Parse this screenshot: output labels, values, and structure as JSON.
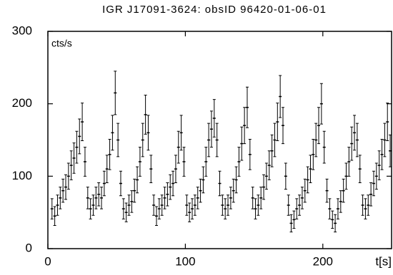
{
  "chart_data": {
    "type": "errorbar",
    "title": "IGR J17091-3624: obsID 96420-01-06-01",
    "ylabel": "cts/s",
    "xlabel": "t[s]",
    "color": "#000000",
    "xlim": [
      0,
      250
    ],
    "xticks": [
      0,
      100,
      200
    ],
    "ylim": [
      0,
      300
    ],
    "yticks": [
      0,
      100,
      200,
      300
    ],
    "x": [
      3,
      5,
      7,
      9,
      11,
      13,
      15,
      17,
      19,
      21,
      23,
      25,
      27,
      29,
      31,
      33,
      35,
      37,
      39,
      41,
      43,
      45,
      47,
      49,
      51,
      53,
      55,
      57,
      59,
      61,
      63,
      65,
      67,
      69,
      71,
      73,
      75,
      77,
      79,
      81,
      83,
      85,
      87,
      89,
      91,
      93,
      95,
      97,
      99,
      101,
      103,
      105,
      107,
      109,
      111,
      113,
      115,
      117,
      119,
      121,
      123,
      125,
      127,
      129,
      131,
      133,
      135,
      137,
      139,
      141,
      143,
      145,
      147,
      149,
      151,
      153,
      155,
      157,
      159,
      161,
      163,
      165,
      167,
      169,
      171,
      173,
      175,
      177,
      179,
      181,
      183,
      185,
      187,
      189,
      191,
      193,
      195,
      197,
      199,
      201,
      203,
      205,
      207,
      209,
      211,
      213,
      215,
      217,
      219,
      221,
      223,
      225,
      227,
      229,
      231,
      233,
      235,
      237,
      239,
      241,
      243,
      245,
      247,
      249
    ],
    "values": [
      55,
      45,
      60,
      70,
      80,
      85,
      100,
      115,
      125,
      140,
      155,
      175,
      120,
      70,
      55,
      60,
      70,
      75,
      70,
      90,
      110,
      130,
      160,
      215,
      150,
      90,
      55,
      50,
      60,
      65,
      80,
      95,
      120,
      150,
      185,
      160,
      110,
      60,
      45,
      55,
      60,
      70,
      75,
      85,
      90,
      110,
      140,
      160,
      120,
      60,
      50,
      55,
      60,
      70,
      80,
      95,
      120,
      150,
      165,
      180,
      150,
      90,
      60,
      55,
      60,
      70,
      80,
      95,
      120,
      145,
      170,
      195,
      130,
      70,
      55,
      60,
      70,
      85,
      100,
      115,
      135,
      150,
      175,
      210,
      170,
      100,
      60,
      35,
      40,
      55,
      60,
      70,
      80,
      95,
      110,
      130,
      150,
      170,
      200,
      140,
      80,
      55,
      40,
      35,
      55,
      65,
      80,
      100,
      120,
      145,
      160,
      150,
      110,
      60,
      55,
      60,
      75,
      90,
      100,
      115,
      130,
      150,
      175,
      135
    ],
    "errors": [
      14,
      13,
      14,
      15,
      16,
      17,
      18,
      20,
      21,
      22,
      24,
      26,
      20,
      15,
      14,
      14,
      15,
      16,
      15,
      17,
      19,
      21,
      24,
      30,
      23,
      17,
      14,
      13,
      14,
      15,
      16,
      18,
      20,
      23,
      27,
      24,
      19,
      14,
      13,
      14,
      14,
      15,
      16,
      17,
      17,
      19,
      22,
      24,
      20,
      14,
      13,
      14,
      14,
      15,
      16,
      18,
      20,
      23,
      25,
      26,
      23,
      17,
      14,
      14,
      14,
      15,
      16,
      18,
      20,
      23,
      25,
      28,
      21,
      15,
      14,
      14,
      15,
      17,
      18,
      20,
      22,
      23,
      26,
      29,
      25,
      18,
      14,
      12,
      12,
      14,
      14,
      15,
      16,
      18,
      19,
      21,
      23,
      25,
      28,
      22,
      16,
      14,
      12,
      12,
      14,
      15,
      16,
      18,
      20,
      23,
      24,
      23,
      19,
      14,
      14,
      14,
      16,
      17,
      18,
      20,
      21,
      23,
      26,
      22
    ]
  }
}
